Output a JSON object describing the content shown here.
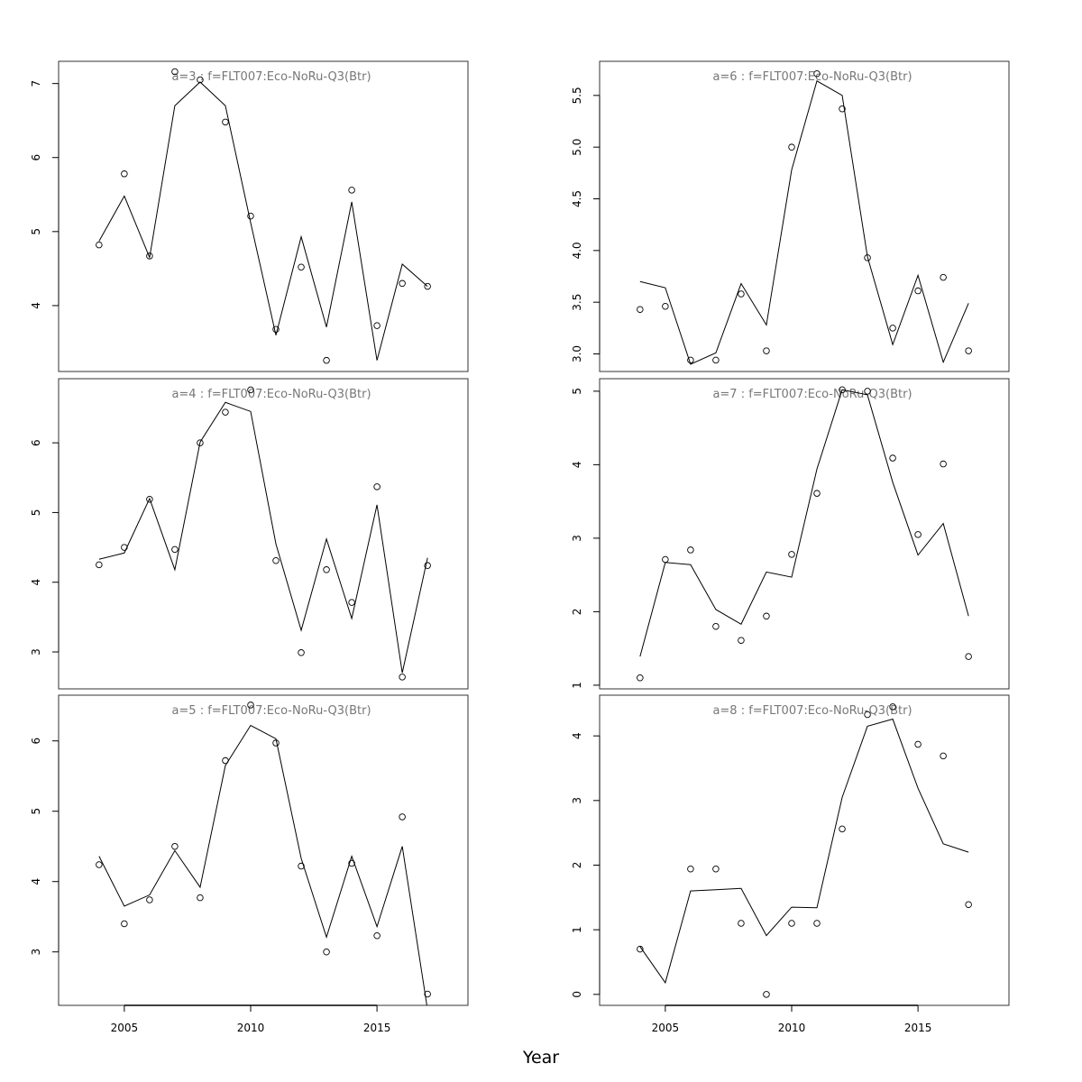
{
  "chart_data": [
    {
      "type": "line",
      "title": "a=3  :  f=FLT007:Eco-NoRu-Q3(Btr)",
      "x": [
        2004,
        2005,
        2006,
        2007,
        2008,
        2009,
        2010,
        2011,
        2012,
        2013,
        2014,
        2015,
        2016,
        2017
      ],
      "series": [
        {
          "style": "points",
          "color": "#000000",
          "values": [
            4.82,
            5.78,
            4.67,
            7.16,
            7.05,
            6.48,
            5.21,
            3.68,
            4.52,
            3.26,
            5.56,
            3.73,
            4.3,
            4.26
          ]
        },
        {
          "style": "line",
          "color": "#000000",
          "values": [
            4.87,
            5.48,
            4.65,
            6.7,
            7.02,
            6.7,
            5.12,
            3.6,
            4.93,
            3.71,
            5.4,
            3.26,
            4.56,
            4.26
          ]
        }
      ],
      "xlim": [
        2002.4,
        2018.6
      ],
      "ylim": [
        3.11,
        7.3
      ],
      "yticks": [
        4,
        5,
        6,
        7
      ]
    },
    {
      "type": "line",
      "title": "a=4  :  f=FLT007:Eco-NoRu-Q3(Btr)",
      "x": [
        2004,
        2005,
        2006,
        2007,
        2008,
        2009,
        2010,
        2011,
        2012,
        2013,
        2014,
        2015,
        2016,
        2017
      ],
      "series": [
        {
          "style": "points",
          "color": "#000000",
          "values": [
            4.25,
            4.5,
            5.19,
            4.47,
            6.0,
            6.44,
            6.76,
            4.31,
            2.99,
            4.18,
            3.71,
            5.37,
            2.64,
            4.24
          ]
        },
        {
          "style": "line",
          "color": "#000000",
          "values": [
            4.33,
            4.42,
            5.2,
            4.18,
            6.01,
            6.58,
            6.45,
            4.55,
            3.31,
            4.62,
            3.48,
            5.11,
            2.7,
            4.35
          ]
        }
      ],
      "xlim": [
        2002.4,
        2018.6
      ],
      "ylim": [
        2.47,
        6.92
      ],
      "yticks": [
        3,
        4,
        5,
        6
      ]
    },
    {
      "type": "line",
      "title": "a=5  :  f=FLT007:Eco-NoRu-Q3(Btr)",
      "x": [
        2004,
        2005,
        2006,
        2007,
        2008,
        2009,
        2010,
        2011,
        2012,
        2013,
        2014,
        2015,
        2016,
        2017
      ],
      "series": [
        {
          "style": "points",
          "color": "#000000",
          "values": [
            4.24,
            3.4,
            3.74,
            4.5,
            3.77,
            5.72,
            6.51,
            5.97,
            4.22,
            3.0,
            4.26,
            3.23,
            4.92,
            2.4
          ]
        },
        {
          "style": "line",
          "color": "#000000",
          "values": [
            4.36,
            3.65,
            3.81,
            4.44,
            3.92,
            5.65,
            6.22,
            6.03,
            4.33,
            3.21,
            4.36,
            3.36,
            4.5,
            2.18
          ]
        }
      ],
      "xlim": [
        2002.4,
        2018.6
      ],
      "ylim": [
        2.24,
        6.65
      ],
      "yticks": [
        3,
        4,
        5,
        6
      ],
      "xticks": [
        2005,
        2010,
        2015
      ]
    },
    {
      "type": "line",
      "title": "a=6  :  f=FLT007:Eco-NoRu-Q3(Btr)",
      "x": [
        2004,
        2005,
        2006,
        2007,
        2008,
        2009,
        2010,
        2011,
        2012,
        2013,
        2014,
        2015,
        2016,
        2017
      ],
      "series": [
        {
          "style": "points",
          "color": "#000000",
          "values": [
            3.43,
            3.46,
            2.94,
            2.94,
            3.58,
            3.03,
            5.0,
            5.71,
            5.37,
            3.93,
            3.25,
            3.61,
            3.74,
            3.03
          ]
        },
        {
          "style": "line",
          "color": "#000000",
          "values": [
            3.7,
            3.64,
            2.9,
            3.01,
            3.68,
            3.28,
            4.78,
            5.64,
            5.5,
            3.94,
            3.09,
            3.76,
            2.92,
            3.49
          ]
        }
      ],
      "xlim": [
        2002.4,
        2018.6
      ],
      "ylim": [
        2.83,
        5.83
      ],
      "yticks": [
        {
          "value": 3,
          "label": "3.0"
        },
        3.5,
        {
          "value": 4,
          "label": "4.0"
        },
        4.5,
        {
          "value": 5,
          "label": "5.0"
        },
        5.5
      ]
    },
    {
      "type": "line",
      "title": "a=7  :  f=FLT007:Eco-NoRu-Q3(Btr)",
      "x": [
        2004,
        2005,
        2006,
        2007,
        2008,
        2009,
        2010,
        2011,
        2012,
        2013,
        2014,
        2015,
        2016,
        2017
      ],
      "series": [
        {
          "style": "points",
          "color": "#000000",
          "values": [
            1.1,
            2.71,
            2.84,
            1.8,
            1.61,
            1.94,
            2.78,
            3.61,
            5.02,
            5.0,
            4.09,
            3.05,
            4.01,
            1.39
          ]
        },
        {
          "style": "line",
          "color": "#000000",
          "values": [
            1.39,
            2.67,
            2.64,
            2.03,
            1.83,
            2.54,
            2.47,
            3.94,
            5.02,
            4.95,
            3.76,
            2.77,
            3.2,
            1.94
          ]
        }
      ],
      "xlim": [
        2002.4,
        2018.6
      ],
      "ylim": [
        0.95,
        5.17
      ],
      "yticks": [
        1,
        2,
        3,
        4,
        5
      ]
    },
    {
      "type": "line",
      "title": "a=8  :  f=FLT007:Eco-NoRu-Q3(Btr)",
      "x": [
        2004,
        2005,
        2006,
        2007,
        2008,
        2009,
        2010,
        2011,
        2012,
        2013,
        2014,
        2015,
        2016,
        2017
      ],
      "series": [
        {
          "style": "points",
          "color": "#000000",
          "values": [
            0.7,
            null,
            1.94,
            1.94,
            1.1,
            0.0,
            1.1,
            1.1,
            2.56,
            4.33,
            4.45,
            3.87,
            3.69,
            1.39
          ]
        },
        {
          "style": "line",
          "color": "#000000",
          "values": [
            0.74,
            0.18,
            1.6,
            1.62,
            1.64,
            0.91,
            1.35,
            1.34,
            3.05,
            4.15,
            4.26,
            3.19,
            2.33,
            2.2
          ]
        }
      ],
      "xlim": [
        2002.4,
        2018.6
      ],
      "ylim": [
        -0.17,
        4.63
      ],
      "yticks": [
        0,
        1,
        2,
        3,
        4
      ],
      "xticks": [
        2005,
        2010,
        2015
      ]
    }
  ],
  "x_label": "Year"
}
